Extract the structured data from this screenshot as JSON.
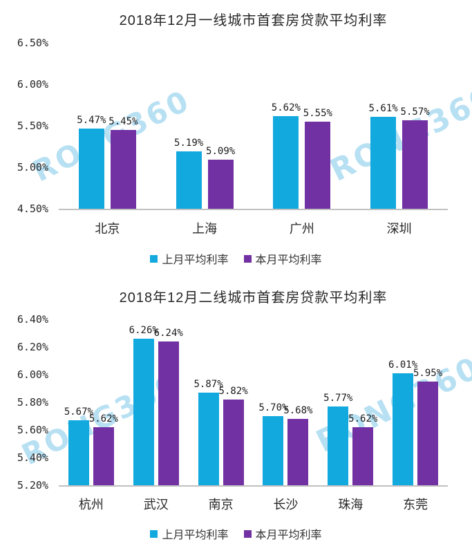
{
  "watermark": "RONG360",
  "colors": {
    "last_month": "#12A9DF",
    "this_month": "#7231A3",
    "axis_line": "#C0C0C0",
    "watermark": "#7DC8EB",
    "text": "#262626"
  },
  "chart_data": [
    {
      "type": "bar",
      "title": "2018年12月一线城市首套房贷款平均利率",
      "categories": [
        "北京",
        "上海",
        "广州",
        "深圳"
      ],
      "series": [
        {
          "name": "上月平均利率",
          "color": "#12A9DF",
          "values": [
            5.47,
            5.19,
            5.62,
            5.61
          ],
          "labels": [
            "5.47%",
            "5.19%",
            "5.62%",
            "5.61%"
          ]
        },
        {
          "name": "本月平均利率",
          "color": "#7231A3",
          "values": [
            5.45,
            5.09,
            5.55,
            5.57
          ],
          "labels": [
            "5.45%",
            "5.09%",
            "5.55%",
            "5.57%"
          ]
        }
      ],
      "ylim": [
        4.5,
        6.5
      ],
      "yticks": [
        "6.50%",
        "6.00%",
        "5.50%",
        "5.00%",
        "4.50%"
      ],
      "xlabel": "",
      "ylabel": "",
      "grid": false,
      "legend_position": "bottom"
    },
    {
      "type": "bar",
      "title": "2018年12月二线城市首套房贷款平均利率",
      "categories": [
        "杭州",
        "武汉",
        "南京",
        "长沙",
        "珠海",
        "东莞"
      ],
      "series": [
        {
          "name": "上月平均利率",
          "color": "#12A9DF",
          "values": [
            5.67,
            6.26,
            5.87,
            5.7,
            5.77,
            6.01
          ],
          "labels": [
            "5.67%",
            "6.26%",
            "5.87%",
            "5.70%",
            "5.77%",
            "6.01%"
          ]
        },
        {
          "name": "本月平均利率",
          "color": "#7231A3",
          "values": [
            5.62,
            6.24,
            5.82,
            5.68,
            5.62,
            5.95
          ],
          "labels": [
            "5.62%",
            "6.24%",
            "5.82%",
            "5.68%",
            "5.62%",
            "5.95%"
          ]
        }
      ],
      "ylim": [
        5.2,
        6.4
      ],
      "yticks": [
        "6.40%",
        "6.20%",
        "6.00%",
        "5.80%",
        "5.60%",
        "5.40%",
        "5.20%"
      ],
      "xlabel": "",
      "ylabel": "",
      "grid": false,
      "legend_position": "bottom"
    }
  ]
}
